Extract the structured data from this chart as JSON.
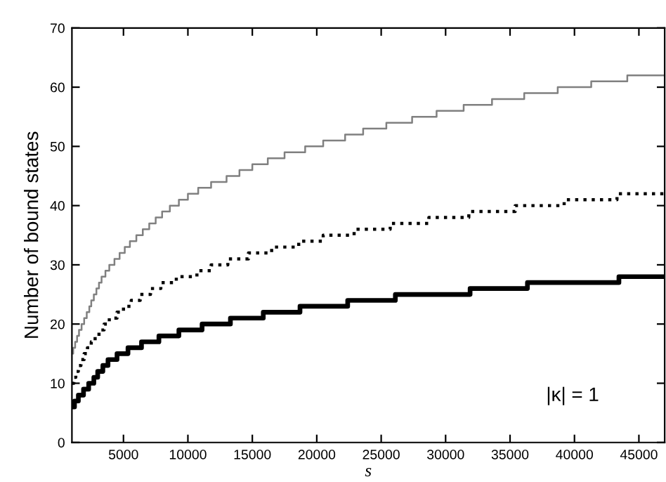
{
  "chart_data": {
    "type": "step",
    "xlabel": "s",
    "ylabel": "Number of bound states",
    "annotations": [
      "|κ| = 1"
    ],
    "xlim": [
      1000,
      47000
    ],
    "ylim": [
      0,
      70
    ],
    "xticks": [
      5000,
      10000,
      15000,
      20000,
      25000,
      30000,
      35000,
      40000,
      45000
    ],
    "yticks": [
      0,
      10,
      20,
      30,
      40,
      50,
      60,
      70
    ],
    "grid": false,
    "legend": false,
    "series": [
      {
        "color": "#808080",
        "line_style": "solid",
        "x": [
          1000,
          1100,
          1250,
          1400,
          1550,
          1750,
          1950,
          2150,
          2350,
          2500,
          2700,
          2900,
          3100,
          3300,
          3600,
          3900,
          4300,
          4700,
          5100,
          5500,
          6000,
          6500,
          7000,
          7500,
          8000,
          8600,
          9300,
          10000,
          10800,
          11800,
          13000,
          14000,
          15000,
          16200,
          17500,
          19100,
          20500,
          22200,
          23600,
          25400,
          27400,
          29300,
          31400,
          33600,
          36100,
          38700,
          41300,
          44100,
          47000
        ],
        "values": [
          15,
          16,
          17,
          18,
          19,
          20,
          21,
          22,
          23,
          24,
          25,
          26,
          27,
          28,
          29,
          30,
          31,
          32,
          33,
          34,
          35,
          36,
          37,
          38,
          39,
          40,
          41,
          42,
          43,
          44,
          45,
          46,
          47,
          48,
          49,
          50,
          51,
          52,
          53,
          54,
          55,
          56,
          57,
          58,
          59,
          60,
          61,
          62,
          62
        ]
      },
      {
        "color": "#000000",
        "line_style": "dotted",
        "x": [
          1000,
          1150,
          1300,
          1500,
          1700,
          1950,
          2200,
          2500,
          2800,
          3100,
          3500,
          3900,
          4500,
          5000,
          5600,
          6300,
          7100,
          7900,
          9100,
          10700,
          11800,
          13100,
          14700,
          16500,
          18600,
          20500,
          22900,
          25700,
          28700,
          31800,
          35400,
          39200,
          43300,
          47000
        ],
        "values": [
          10,
          11,
          12,
          13,
          14,
          15,
          16,
          17,
          18,
          19,
          20,
          21,
          22,
          23,
          24,
          25,
          26,
          27,
          28,
          29,
          30,
          31,
          32,
          33,
          34,
          35,
          36,
          37,
          38,
          39,
          40,
          41,
          42,
          42
        ]
      },
      {
        "color": "#000000",
        "line_style": "solid",
        "x": [
          1000,
          1200,
          1500,
          1900,
          2300,
          2700,
          3000,
          3400,
          3800,
          4500,
          5350,
          6400,
          7750,
          9300,
          11100,
          13300,
          15850,
          18700,
          22400,
          26100,
          31900,
          36350,
          43450,
          47000
        ],
        "values": [
          6,
          7,
          8,
          9,
          10,
          11,
          12,
          13,
          14,
          15,
          16,
          17,
          18,
          19,
          20,
          21,
          22,
          23,
          24,
          25,
          26,
          27,
          28,
          28
        ]
      }
    ]
  }
}
